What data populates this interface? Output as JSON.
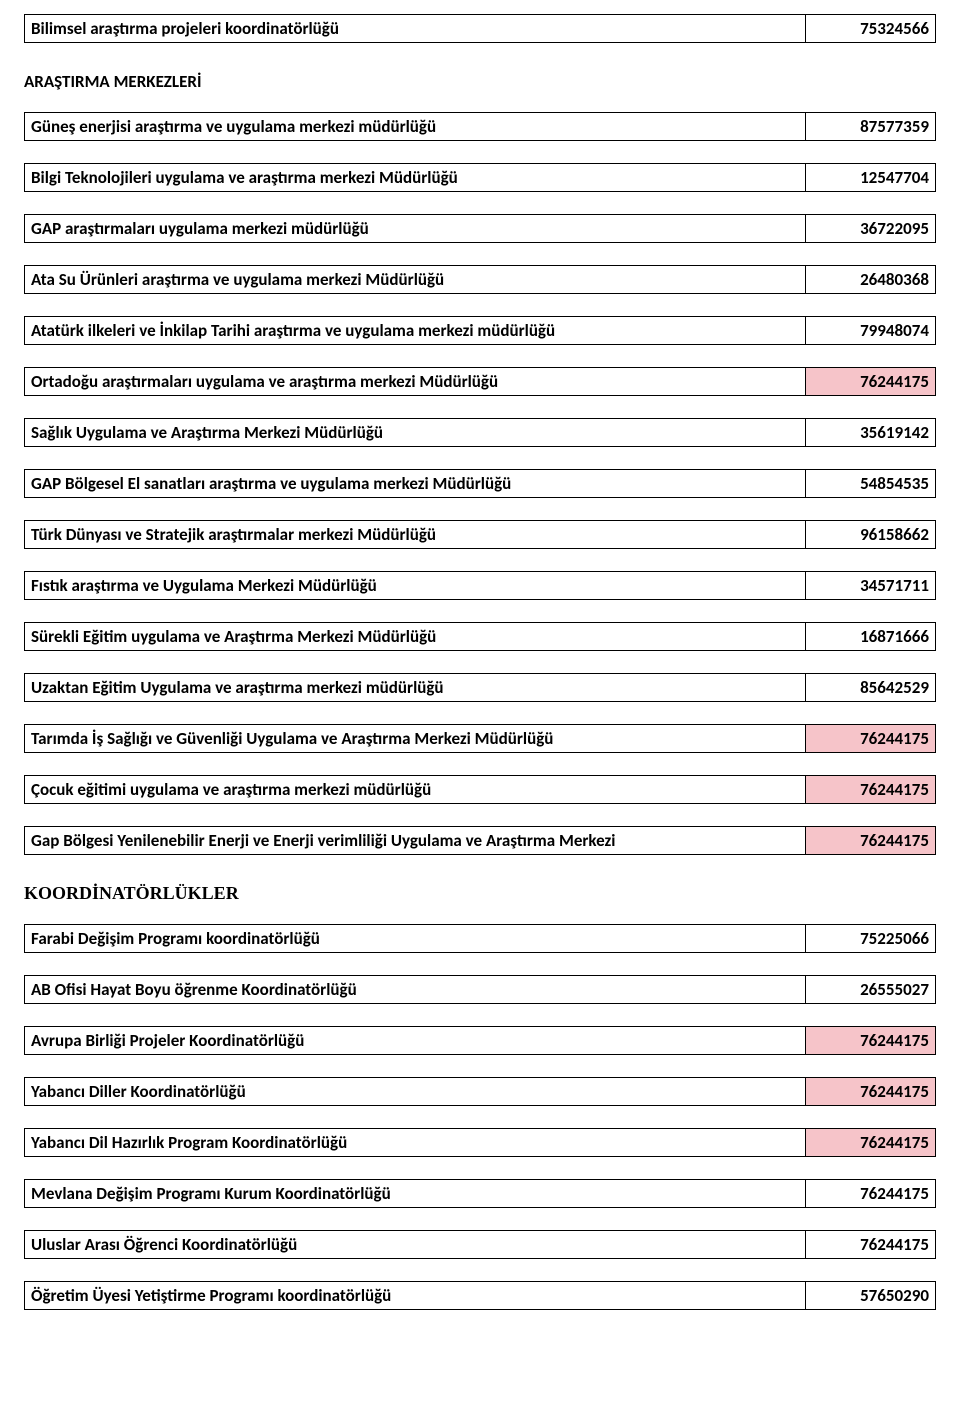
{
  "colors": {
    "normal_bg": "#ffffff",
    "highlight_bg": "#f6c4c9",
    "label_highlight_bg": "#ffffff",
    "border": "#000000",
    "text": "#000000"
  },
  "fontsize": {
    "label": 17,
    "value": 17,
    "header": 17
  },
  "sections": [
    {
      "rows": [
        {
          "label": "Bilimsel araştırma projeleri koordinatörlüğü",
          "value": "75324566",
          "highlight": false
        }
      ]
    },
    {
      "header": "ARAŞTIRMA MERKEZLERİ",
      "header_serif": false,
      "rows": [
        {
          "label": "Güneş enerjisi araştırma ve uygulama merkezi müdürlüğü",
          "value": "87577359",
          "highlight": false
        },
        {
          "label": "Bilgi Teknolojileri uygulama ve araştırma merkezi Müdürlüğü",
          "value": "12547704",
          "highlight": false
        },
        {
          "label": "GAP araştırmaları uygulama merkezi müdürlüğü",
          "value": "36722095",
          "highlight": false
        },
        {
          "label": "Ata Su Ürünleri araştırma ve uygulama merkezi Müdürlüğü",
          "value": "26480368",
          "highlight": false
        },
        {
          "label": "Atatürk ilkeleri ve İnkilap Tarihi araştırma ve uygulama merkezi müdürlüğü",
          "value": "79948074",
          "highlight": false
        },
        {
          "label": "Ortadoğu araştırmaları uygulama ve araştırma merkezi Müdürlüğü",
          "value": "76244175",
          "highlight": true
        },
        {
          "label": "Sağlık Uygulama ve Araştırma Merkezi Müdürlüğü",
          "value": "35619142",
          "highlight": false
        },
        {
          "label": "GAP Bölgesel El sanatları araştırma ve uygulama merkezi Müdürlüğü",
          "value": "54854535",
          "highlight": false
        },
        {
          "label": "Türk Dünyası ve Stratejik araştırmalar merkezi Müdürlüğü",
          "value": "96158662",
          "highlight": false
        },
        {
          "label": "Fıstık araştırma ve Uygulama Merkezi Müdürlüğü",
          "value": "34571711",
          "highlight": false
        },
        {
          "label": "Sürekli Eğitim uygulama ve Araştırma Merkezi Müdürlüğü",
          "value": "16871666",
          "highlight": false
        },
        {
          "label": "Uzaktan Eğitim Uygulama ve araştırma merkezi müdürlüğü",
          "value": "85642529",
          "highlight": false
        },
        {
          "label": "Tarımda İş Sağlığı ve Güvenliği Uygulama ve Araştırma Merkezi Müdürlüğü",
          "value": "76244175",
          "highlight": true
        },
        {
          "label": "Çocuk eğitimi uygulama ve araştırma merkezi müdürlüğü",
          "value": "76244175",
          "highlight": true
        },
        {
          "label": "Gap Bölgesi Yenilenebilir Enerji ve Enerji verimliliği Uygulama ve Araştırma Merkezi",
          "value": "76244175",
          "highlight": true
        }
      ]
    },
    {
      "header": "KOORDİNATÖRLÜKLER",
      "header_serif": true,
      "rows": [
        {
          "label": "Farabi Değişim Programı koordinatörlüğü",
          "value": "75225066",
          "highlight": false
        },
        {
          "label": "AB Ofisi Hayat Boyu öğrenme Koordinatörlüğü",
          "value": "26555027",
          "highlight": false
        },
        {
          "label": "Avrupa Birliği Projeler Koordinatörlüğü",
          "value": "76244175",
          "highlight": true
        },
        {
          "label": "Yabancı Diller Koordinatörlüğü",
          "value": "76244175",
          "highlight": true
        },
        {
          "label": "Yabancı Dil Hazırlık Program Koordinatörlüğü",
          "value": "76244175",
          "highlight": true
        },
        {
          "label": "Mevlana Değişim Programı Kurum Koordinatörlüğü",
          "value": "76244175",
          "highlight": false
        },
        {
          "label": "Uluslar Arası Öğrenci Koordinatörlüğü",
          "value": "76244175",
          "highlight": false
        },
        {
          "label": "Öğretim Üyesi Yetiştirme Programı koordinatörlüğü",
          "value": "57650290",
          "highlight": false
        }
      ]
    }
  ]
}
